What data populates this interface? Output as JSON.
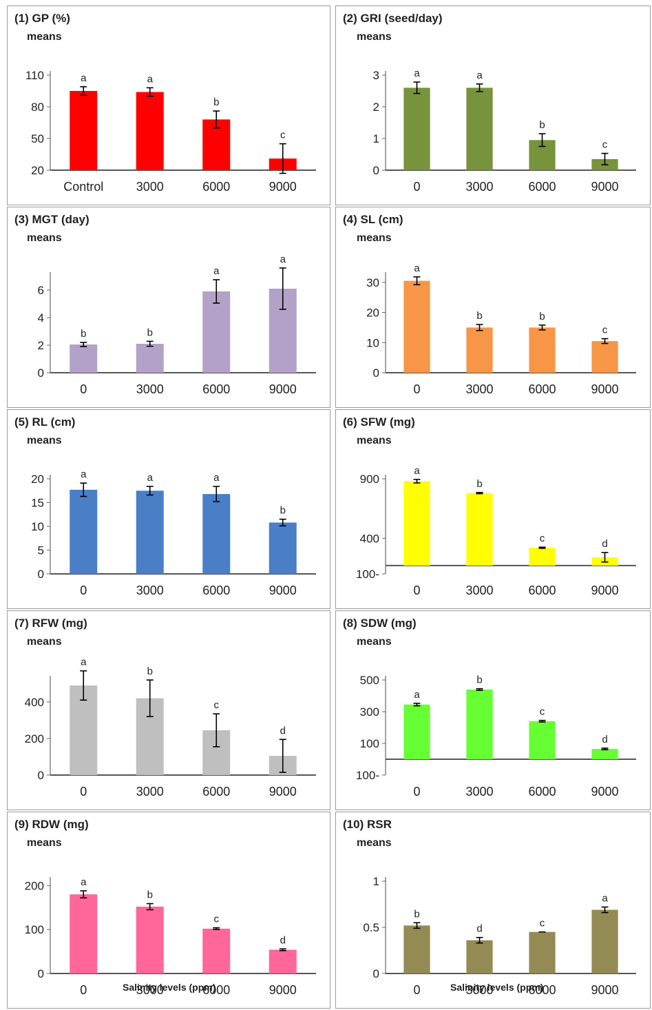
{
  "chart_data": [
    {
      "type": "bar",
      "title": "(1) GP (%)",
      "ylabel": "means",
      "xlabel": "",
      "categories": [
        "Control",
        "3000",
        "6000",
        "9000"
      ],
      "values": [
        95,
        94,
        68,
        31
      ],
      "errors": [
        4,
        4,
        8,
        14
      ],
      "letters": [
        "a",
        "a",
        "b",
        "c"
      ],
      "ylim": [
        20,
        110
      ],
      "yticks": [
        20,
        50,
        80,
        110
      ],
      "color": "#ff0000",
      "baseline": 20
    },
    {
      "type": "bar",
      "title": "(2) GRI (seed/day)",
      "ylabel": "means",
      "xlabel": "",
      "categories": [
        "0",
        "3000",
        "6000",
        "9000"
      ],
      "values": [
        2.6,
        2.6,
        0.95,
        0.35
      ],
      "errors": [
        0.18,
        0.12,
        0.2,
        0.18
      ],
      "letters": [
        "a",
        "a",
        "b",
        "c"
      ],
      "ylim": [
        0,
        3
      ],
      "yticks": [
        0,
        1,
        2,
        3
      ],
      "color": "#77933c",
      "baseline": 0
    },
    {
      "type": "bar",
      "title": "(3) MGT (day)",
      "ylabel": "means",
      "xlabel": "",
      "categories": [
        "0",
        "3000",
        "6000",
        "9000"
      ],
      "values": [
        2.05,
        2.1,
        5.9,
        6.1
      ],
      "errors": [
        0.15,
        0.18,
        0.85,
        1.5
      ],
      "letters": [
        "b",
        "b",
        "a",
        "a"
      ],
      "ylim": [
        0,
        7
      ],
      "yticks": [
        0,
        2,
        4,
        6
      ],
      "color": "#b3a2c7",
      "baseline": 0
    },
    {
      "type": "bar",
      "title": "(4) SL (cm)",
      "ylabel": "means",
      "xlabel": "",
      "categories": [
        "0",
        "3000",
        "6000",
        "9000"
      ],
      "values": [
        30.5,
        15,
        15,
        10.5
      ],
      "errors": [
        1.3,
        1,
        0.8,
        0.8
      ],
      "letters": [
        "a",
        "b",
        "b",
        "c"
      ],
      "ylim": [
        0,
        32
      ],
      "yticks": [
        0,
        10,
        20,
        30
      ],
      "color": "#f79646",
      "baseline": 0
    },
    {
      "type": "bar",
      "title": "(5) RL (cm)",
      "ylabel": "means",
      "xlabel": "",
      "categories": [
        "0",
        "3000",
        "6000",
        "9000"
      ],
      "values": [
        17.7,
        17.5,
        16.8,
        10.8
      ],
      "errors": [
        1.4,
        0.9,
        1.6,
        0.7
      ],
      "letters": [
        "a",
        "a",
        "a",
        "b"
      ],
      "ylim": [
        0,
        20
      ],
      "yticks": [
        0,
        5,
        10,
        15,
        20
      ],
      "color": "#4a7fc8",
      "baseline": 0
    },
    {
      "type": "bar",
      "title": "(6) SFW (mg)",
      "ylabel": "means",
      "xlabel": "",
      "categories": [
        "0",
        "3000",
        "6000",
        "9000"
      ],
      "values": [
        880,
        780,
        320,
        240
      ],
      "errors": [
        15,
        5,
        5,
        40
      ],
      "letters": [
        "a",
        "b",
        "c",
        "d"
      ],
      "ylim": [
        100,
        900
      ],
      "yticks": [
        900,
        400,
        "100-"
      ],
      "ytickvals": [
        900,
        400,
        100
      ],
      "color": "#ffff00",
      "baseline": 170
    },
    {
      "type": "bar",
      "title": "(7) RFW (mg)",
      "ylabel": "means",
      "xlabel": "",
      "categories": [
        "0",
        "3000",
        "6000",
        "9000"
      ],
      "values": [
        490,
        420,
        245,
        105
      ],
      "errors": [
        80,
        100,
        90,
        90
      ],
      "letters": [
        "a",
        "b",
        "c",
        "d"
      ],
      "ylim": [
        0,
        520
      ],
      "yticks": [
        0,
        200,
        400
      ],
      "color": "#bfbfbf",
      "baseline": 0
    },
    {
      "type": "bar",
      "title": "(8) SDW (mg)",
      "ylabel": "means",
      "xlabel": "",
      "categories": [
        "0",
        "3000",
        "6000",
        "9000"
      ],
      "values": [
        345,
        440,
        240,
        65
      ],
      "errors": [
        8,
        5,
        5,
        5
      ],
      "letters": [
        "a",
        "b",
        "c",
        "d"
      ],
      "ylim": [
        -100,
        500
      ],
      "yticks": [
        500,
        300,
        100,
        "100-"
      ],
      "ytickvals": [
        500,
        300,
        100,
        -100
      ],
      "color": "#66ff33",
      "baseline": 0
    },
    {
      "type": "bar",
      "title": "(9) RDW (mg)",
      "ylabel": "means",
      "xlabel": "Salinity levels (ppm)",
      "categories": [
        "0",
        "3000",
        "6000",
        "9000"
      ],
      "values": [
        180,
        152,
        102,
        54
      ],
      "errors": [
        8,
        7,
        2,
        2
      ],
      "letters": [
        "a",
        "b",
        "c",
        "d"
      ],
      "ylim": [
        0,
        210
      ],
      "yticks": [
        0,
        100,
        200
      ],
      "color": "#ff6699",
      "baseline": 0
    },
    {
      "type": "bar",
      "title": "(10) RSR",
      "ylabel": "means",
      "xlabel": "Salinity levels (ppm)",
      "categories": [
        "0",
        "3000",
        "6000",
        "9000"
      ],
      "values": [
        0.52,
        0.36,
        0.45,
        0.69
      ],
      "errors": [
        0.03,
        0.03,
        0,
        0.03
      ],
      "letters": [
        "b",
        "d",
        "c",
        "a"
      ],
      "ylim": [
        0,
        1
      ],
      "yticks": [
        0,
        0.5,
        1
      ],
      "color": "#948a54",
      "baseline": 0
    }
  ]
}
